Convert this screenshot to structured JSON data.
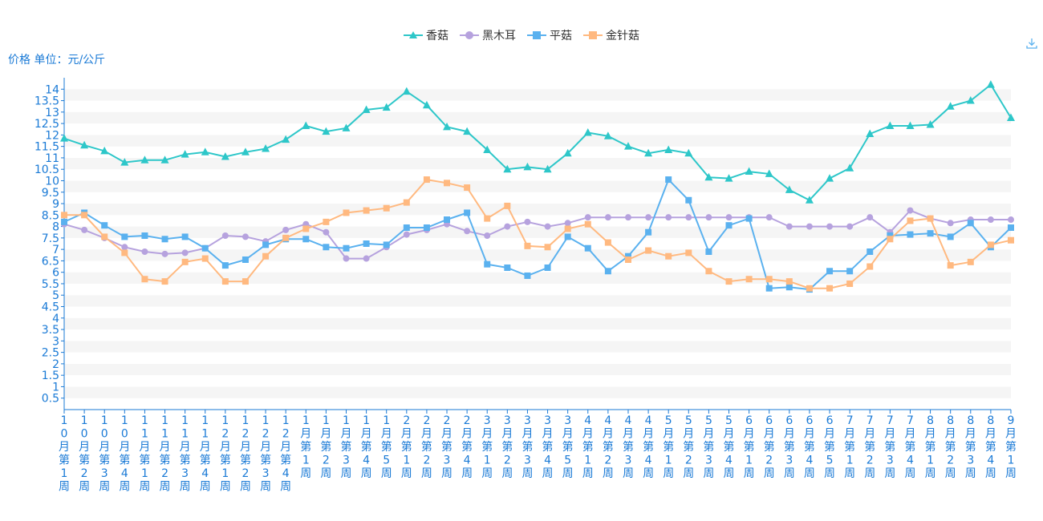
{
  "toolbar": {
    "download_icon": "download-icon"
  },
  "chart_data": {
    "type": "line",
    "ylabel": "价格 单位：元/公斤",
    "ylim": [
      0,
      14.5
    ],
    "yticks": [
      0.5,
      1,
      1.5,
      2,
      2.5,
      3,
      3.5,
      4,
      4.5,
      5,
      5.5,
      6,
      6.5,
      7,
      7.5,
      8,
      8.5,
      9,
      9.5,
      10,
      10.5,
      11,
      11.5,
      12,
      12.5,
      13,
      13.5,
      14
    ],
    "grid": true,
    "legend_position": "top-center",
    "categories": [
      "10月第1周",
      "10月第2周",
      "10月第3周",
      "10月第4周",
      "11月第1周",
      "11月第2周",
      "11月第3周",
      "11月第4周",
      "12月第1周",
      "12月第2周",
      "12月第3周",
      "12月第4周",
      "1月第1周",
      "1月第2周",
      "1月第3周",
      "1月第4周",
      "1月第5周",
      "2月第1周",
      "2月第2周",
      "2月第3周",
      "2月第4周",
      "3月第1周",
      "3月第2周",
      "3月第3周",
      "3月第4周",
      "3月第5周",
      "4月第1周",
      "4月第2周",
      "4月第3周",
      "4月第4周",
      "5月第1周",
      "5月第2周",
      "5月第3周",
      "5月第4周",
      "6月第1周",
      "6月第2周",
      "6月第3周",
      "6月第4周",
      "6月第5周",
      "7月第1周",
      "7月第2周",
      "7月第3周",
      "7月第4周",
      "8月第1周",
      "8月第2周",
      "8月第3周",
      "8月第4周",
      "9月第1周"
    ],
    "series": [
      {
        "name": "香菇",
        "color": "#2ec7c9",
        "symbol": "triangle",
        "values": [
          11.85,
          11.55,
          11.3,
          10.8,
          10.9,
          10.9,
          11.15,
          11.25,
          11.05,
          11.25,
          11.4,
          11.8,
          12.4,
          12.15,
          12.3,
          13.1,
          13.2,
          13.9,
          13.3,
          12.35,
          12.15,
          11.35,
          10.5,
          10.6,
          10.5,
          11.2,
          12.1,
          11.95,
          11.5,
          11.2,
          11.35,
          11.2,
          10.15,
          10.1,
          10.4,
          10.3,
          9.6,
          9.15,
          10.1,
          10.55,
          12.05,
          12.4,
          12.4,
          12.45,
          13.25,
          13.5,
          14.2,
          12.75
        ]
      },
      {
        "name": "黑木耳",
        "color": "#b6a2de",
        "symbol": "circle",
        "values": [
          8.1,
          7.85,
          7.5,
          7.1,
          6.9,
          6.8,
          6.85,
          7.05,
          7.6,
          7.55,
          7.35,
          7.85,
          8.1,
          7.75,
          6.6,
          6.6,
          7.1,
          7.65,
          7.85,
          8.1,
          7.8,
          7.6,
          8.0,
          8.2,
          8.0,
          8.15,
          8.4,
          8.4,
          8.4,
          8.4,
          8.4,
          8.4,
          8.4,
          8.4,
          8.4,
          8.4,
          8.0,
          8.0,
          8.0,
          8.0,
          8.4,
          7.75,
          8.7,
          8.35,
          8.15,
          8.3,
          8.3,
          8.3
        ]
      },
      {
        "name": "平菇",
        "color": "#5ab1ef",
        "symbol": "rect",
        "values": [
          8.2,
          8.6,
          8.05,
          7.55,
          7.6,
          7.45,
          7.55,
          7.05,
          6.3,
          6.55,
          7.2,
          7.45,
          7.45,
          7.1,
          7.05,
          7.25,
          7.2,
          7.95,
          7.95,
          8.3,
          8.6,
          6.35,
          6.2,
          5.85,
          6.2,
          7.55,
          7.05,
          6.05,
          6.7,
          7.75,
          10.05,
          9.15,
          6.9,
          8.05,
          8.35,
          5.3,
          5.35,
          5.25,
          6.05,
          6.05,
          6.9,
          7.6,
          7.65,
          7.7,
          7.55,
          8.15,
          7.1,
          7.95
        ]
      },
      {
        "name": "金针菇",
        "color": "#ffb980",
        "symbol": "rect",
        "values": [
          8.5,
          8.5,
          7.55,
          6.85,
          5.7,
          5.6,
          6.45,
          6.6,
          5.6,
          5.6,
          6.7,
          7.5,
          7.9,
          8.2,
          8.6,
          8.7,
          8.8,
          9.05,
          10.05,
          9.9,
          9.7,
          8.35,
          8.9,
          7.15,
          7.1,
          7.9,
          8.1,
          7.3,
          6.55,
          6.95,
          6.7,
          6.85,
          6.05,
          5.6,
          5.7,
          5.7,
          5.6,
          5.3,
          5.3,
          5.5,
          6.25,
          7.45,
          8.25,
          8.35,
          6.3,
          6.45,
          7.2,
          7.4
        ]
      }
    ]
  }
}
